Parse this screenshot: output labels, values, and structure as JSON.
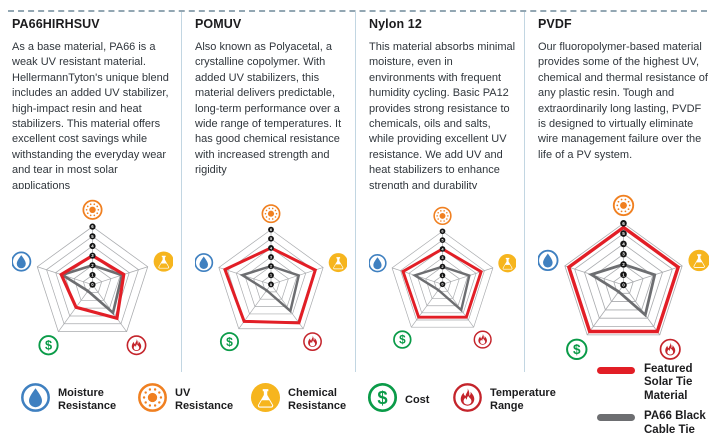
{
  "columns": [
    {
      "title": "PA66HIRHSUV",
      "body": "As a base material, PA66 is a weak UV resistant material. HellermannTyton's unique blend includes an added UV stabilizer, high-impact resin and heat stabilizers. This material offers excellent cost savings while withstanding the everyday wear and tear in most solar applications"
    },
    {
      "title": "POMUV",
      "body": "Also known as Polyacetal, a crystalline copolymer. With added UV stabilizers, this material delivers predictable, long-term performance over a wide range of temperatures. It has good chemical resistance with increased strength and rigidity"
    },
    {
      "title": "Nylon 12",
      "body": "This material absorbs minimal moisture, even in environments with frequent humidity cycling. Basic PA12 provides strong resistance to chemicals, oils and salts, while providing excellent UV resistance. We add UV and heat stabilizers to enhance strength and durability"
    },
    {
      "title": "PVDF",
      "body": "Our fluoropolymer-based material provides some of the highest UV, chemical and thermal resistance of any plastic resin. Tough and extraordinarily long lasting, PVDF is designed to virtually eliminate wire management failure over the life of a PV system."
    }
  ],
  "chart_data": {
    "type": "radar",
    "axes": [
      "UV Resistance",
      "Chemical Resistance",
      "Temperature Range",
      "Cost",
      "Moisture Resistance"
    ],
    "axis_icons": [
      "sun",
      "flask",
      "flame",
      "dollar",
      "droplet"
    ],
    "scale": {
      "min": 0,
      "max": 6,
      "rings": 6,
      "tick_labels": [
        6,
        5,
        4,
        3,
        2,
        1,
        0
      ]
    },
    "baseline_series": {
      "name": "PA66 Black Cable Tie",
      "color": "#6d6e71",
      "values": [
        2.0,
        3.2,
        3.6,
        0.8,
        3.3
      ]
    },
    "featured_series_name": "Featured Solar Tie Material",
    "featured_color": "#e21e26",
    "charts": [
      {
        "material": "PA66HIRHSUV",
        "featured": [
          3.0,
          3.4,
          4.3,
          2.9,
          3.4
        ]
      },
      {
        "material": "POMUV",
        "featured": [
          4.0,
          5.1,
          5.2,
          5.0,
          5.3
        ]
      },
      {
        "material": "Nylon 12",
        "featured": [
          4.0,
          4.6,
          4.6,
          4.6,
          4.7
        ]
      },
      {
        "material": "PVDF",
        "featured": [
          5.6,
          5.6,
          5.6,
          5.6,
          5.6
        ]
      }
    ],
    "grid_color": "#a9abae"
  },
  "legend": {
    "attributes": [
      {
        "icon": "droplet",
        "label": "Moisture Resistance",
        "color": "#3f80c0"
      },
      {
        "icon": "sun",
        "label": "UV Resistance",
        "color": "#f08021"
      },
      {
        "icon": "flask",
        "label": "Chemical Resistance",
        "color": "#f6b51e"
      },
      {
        "icon": "dollar",
        "label": "Cost",
        "color": "#0a9b48"
      },
      {
        "icon": "flame",
        "label": "Temperature Range",
        "color": "#c4242b"
      }
    ],
    "lines": [
      {
        "label": "Featured Solar Tie Material",
        "color": "#e21e26"
      },
      {
        "label": "PA66 Black Cable Tie",
        "color": "#6d6e71"
      }
    ]
  }
}
